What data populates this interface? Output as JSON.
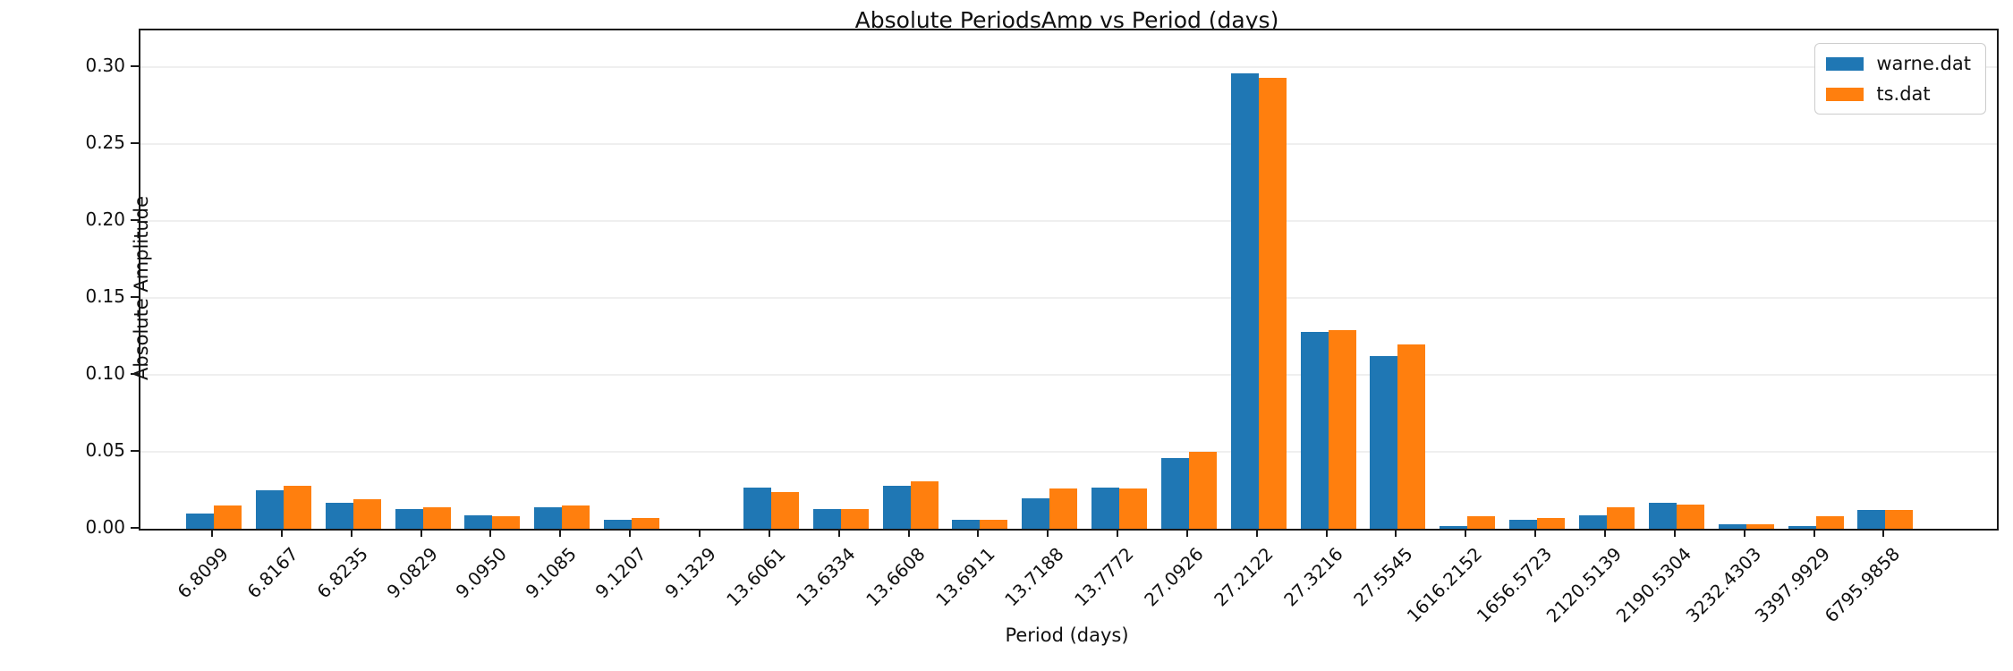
{
  "figure_title": "Absolute PeriodsAmp vs Period (days)",
  "chart_data": {
    "type": "bar",
    "title": "Absolute PeriodsAmp vs Period (days)",
    "xlabel": "Period (days)",
    "ylabel": "Absolute Amplitude",
    "categories": [
      "6.8099",
      "6.8167",
      "6.8235",
      "9.0829",
      "9.0950",
      "9.1085",
      "9.1207",
      "9.1329",
      "13.6061",
      "13.6334",
      "13.6608",
      "13.6911",
      "13.7188",
      "13.7772",
      "27.0926",
      "27.2122",
      "27.3216",
      "27.5545",
      "1616.2152",
      "1656.5723",
      "2120.5139",
      "2190.5304",
      "3232.4303",
      "3397.9929",
      "6795.9858"
    ],
    "series": [
      {
        "name": "warne.dat",
        "color": "#1f77b4",
        "values": [
          0.01,
          0.025,
          0.017,
          0.013,
          0.009,
          0.014,
          0.006,
          0.0,
          0.027,
          0.013,
          0.028,
          0.006,
          0.02,
          0.027,
          0.046,
          0.296,
          0.128,
          0.112,
          0.002,
          0.006,
          0.009,
          0.017,
          0.003,
          0.002,
          0.012
        ]
      },
      {
        "name": "ts.dat",
        "color": "#ff7f0e",
        "values": [
          0.015,
          0.028,
          0.019,
          0.014,
          0.008,
          0.015,
          0.007,
          0.0,
          0.024,
          0.013,
          0.031,
          0.006,
          0.026,
          0.026,
          0.05,
          0.293,
          0.129,
          0.12,
          0.008,
          0.007,
          0.014,
          0.016,
          0.003,
          0.008,
          0.012
        ]
      }
    ],
    "yticks": [
      "0.00",
      "0.05",
      "0.10",
      "0.15",
      "0.20",
      "0.25",
      "0.30"
    ],
    "ylim": [
      0,
      0.324
    ],
    "grid": true,
    "gridline_color": "#efefef",
    "legend_position": "upper right",
    "x_tick_rotation_deg": 45
  }
}
